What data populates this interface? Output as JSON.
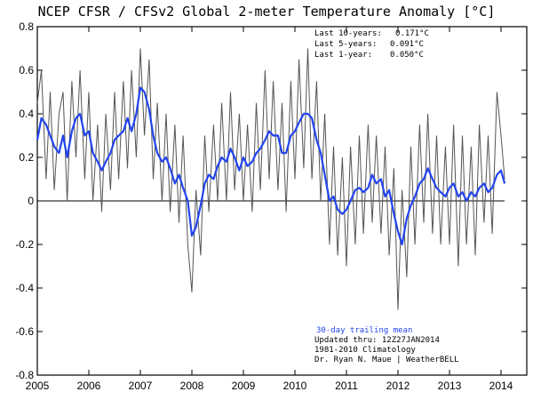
{
  "chart_data": {
    "type": "line",
    "title": "NCEP CFSR / CFSv2 Global 2-meter Temperature Anomaly [°C]",
    "xlabel": "",
    "ylabel": "",
    "xlim": [
      2005.0,
      2014.5
    ],
    "ylim": [
      -0.8,
      0.8
    ],
    "x_ticks": [
      "2005",
      "2006",
      "2007",
      "2008",
      "2009",
      "2010",
      "2011",
      "2012",
      "2013",
      "2014"
    ],
    "y_ticks": [
      "0.8",
      "0.6",
      "0.4",
      "0.2",
      "0",
      "-0.2",
      "-0.4",
      "-0.6",
      "-0.8"
    ],
    "zero_line": 0,
    "stats": [
      {
        "label": "Last 10-years:",
        "value": "0.171°C"
      },
      {
        "label": "Last 5-years:",
        "value": "0.091°C"
      },
      {
        "label": "Last 1-year:",
        "value": "0.050°C"
      }
    ],
    "legend_label": "30-day trailing mean",
    "notes": [
      "Updated thru: 12Z27JAN2014",
      "1981-2010 Climatology",
      "Dr. Ryan N. Maue | WeatherBELL"
    ],
    "colors": {
      "daily": "#555555",
      "mean": "#2244ee",
      "legend_text": "#2244ee"
    },
    "series": [
      {
        "name": "30-day trailing mean",
        "x": [
          2005.0,
          2005.08,
          2005.17,
          2005.25,
          2005.33,
          2005.42,
          2005.5,
          2005.58,
          2005.67,
          2005.75,
          2005.83,
          2005.92,
          2006.0,
          2006.08,
          2006.17,
          2006.25,
          2006.33,
          2006.42,
          2006.5,
          2006.58,
          2006.67,
          2006.75,
          2006.83,
          2006.92,
          2007.0,
          2007.08,
          2007.17,
          2007.25,
          2007.33,
          2007.42,
          2007.5,
          2007.58,
          2007.67,
          2007.75,
          2007.83,
          2007.92,
          2008.0,
          2008.08,
          2008.17,
          2008.25,
          2008.33,
          2008.42,
          2008.5,
          2008.58,
          2008.67,
          2008.75,
          2008.83,
          2008.92,
          2009.0,
          2009.08,
          2009.17,
          2009.25,
          2009.33,
          2009.42,
          2009.5,
          2009.58,
          2009.67,
          2009.75,
          2009.83,
          2009.92,
          2010.0,
          2010.08,
          2010.17,
          2010.25,
          2010.33,
          2010.42,
          2010.5,
          2010.58,
          2010.67,
          2010.75,
          2010.83,
          2010.92,
          2011.0,
          2011.08,
          2011.17,
          2011.25,
          2011.33,
          2011.42,
          2011.5,
          2011.58,
          2011.67,
          2011.75,
          2011.83,
          2011.92,
          2012.0,
          2012.08,
          2012.17,
          2012.25,
          2012.33,
          2012.42,
          2012.5,
          2012.58,
          2012.67,
          2012.75,
          2012.83,
          2012.92,
          2013.0,
          2013.08,
          2013.17,
          2013.25,
          2013.33,
          2013.42,
          2013.5,
          2013.58,
          2013.67,
          2013.75,
          2013.83,
          2013.92,
          2014.0,
          2014.07
        ],
        "values": [
          0.28,
          0.38,
          0.35,
          0.3,
          0.25,
          0.22,
          0.3,
          0.2,
          0.32,
          0.38,
          0.4,
          0.3,
          0.32,
          0.22,
          0.18,
          0.14,
          0.18,
          0.22,
          0.28,
          0.3,
          0.32,
          0.38,
          0.32,
          0.4,
          0.52,
          0.5,
          0.42,
          0.3,
          0.22,
          0.18,
          0.2,
          0.15,
          0.08,
          0.12,
          0.06,
          0.0,
          -0.16,
          -0.12,
          -0.02,
          0.08,
          0.12,
          0.1,
          0.16,
          0.2,
          0.18,
          0.24,
          0.2,
          0.14,
          0.2,
          0.16,
          0.18,
          0.22,
          0.24,
          0.28,
          0.32,
          0.3,
          0.3,
          0.22,
          0.22,
          0.3,
          0.32,
          0.36,
          0.4,
          0.4,
          0.38,
          0.28,
          0.22,
          0.12,
          0.0,
          0.02,
          -0.04,
          -0.06,
          -0.04,
          0.0,
          0.05,
          0.06,
          0.04,
          0.06,
          0.12,
          0.08,
          0.1,
          0.02,
          0.05,
          -0.06,
          -0.14,
          -0.2,
          -0.08,
          -0.02,
          0.02,
          0.08,
          0.1,
          0.15,
          0.1,
          0.06,
          0.04,
          0.02,
          0.06,
          0.08,
          0.02,
          0.04,
          0.0,
          0.04,
          0.02,
          0.06,
          0.08,
          0.04,
          0.06,
          0.12,
          0.14,
          0.08
        ]
      },
      {
        "name": "daily",
        "x": [
          2005.0,
          2005.08,
          2005.17,
          2005.25,
          2005.33,
          2005.42,
          2005.5,
          2005.58,
          2005.67,
          2005.75,
          2005.83,
          2005.92,
          2006.0,
          2006.08,
          2006.17,
          2006.25,
          2006.33,
          2006.42,
          2006.5,
          2006.58,
          2006.67,
          2006.75,
          2006.83,
          2006.92,
          2007.0,
          2007.08,
          2007.17,
          2007.25,
          2007.33,
          2007.42,
          2007.5,
          2007.58,
          2007.67,
          2007.75,
          2007.83,
          2007.92,
          2008.0,
          2008.08,
          2008.17,
          2008.25,
          2008.33,
          2008.42,
          2008.5,
          2008.58,
          2008.67,
          2008.75,
          2008.83,
          2008.92,
          2009.0,
          2009.08,
          2009.17,
          2009.25,
          2009.33,
          2009.42,
          2009.5,
          2009.58,
          2009.67,
          2009.75,
          2009.83,
          2009.92,
          2010.0,
          2010.08,
          2010.17,
          2010.25,
          2010.33,
          2010.42,
          2010.5,
          2010.58,
          2010.67,
          2010.75,
          2010.83,
          2010.92,
          2011.0,
          2011.08,
          2011.17,
          2011.25,
          2011.33,
          2011.42,
          2011.5,
          2011.58,
          2011.67,
          2011.75,
          2011.83,
          2011.92,
          2012.0,
          2012.08,
          2012.17,
          2012.25,
          2012.33,
          2012.42,
          2012.5,
          2012.58,
          2012.67,
          2012.75,
          2012.83,
          2012.92,
          2013.0,
          2013.08,
          2013.17,
          2013.25,
          2013.33,
          2013.42,
          2013.5,
          2013.58,
          2013.67,
          2013.75,
          2013.83,
          2013.92,
          2014.0,
          2014.07
        ],
        "values": [
          0.45,
          0.6,
          0.1,
          0.5,
          0.05,
          0.4,
          0.5,
          0.0,
          0.55,
          0.2,
          0.6,
          0.1,
          0.5,
          0.0,
          0.35,
          -0.05,
          0.4,
          0.05,
          0.5,
          0.1,
          0.55,
          0.15,
          0.6,
          0.2,
          0.7,
          0.3,
          0.65,
          0.1,
          0.45,
          0.0,
          0.4,
          -0.05,
          0.35,
          -0.1,
          0.3,
          -0.2,
          -0.42,
          0.05,
          -0.25,
          0.3,
          -0.05,
          0.35,
          0.0,
          0.45,
          0.0,
          0.5,
          0.05,
          0.4,
          0.0,
          0.35,
          -0.05,
          0.45,
          0.05,
          0.6,
          0.1,
          0.55,
          0.05,
          0.45,
          -0.05,
          0.55,
          0.1,
          0.65,
          0.15,
          0.7,
          0.1,
          0.55,
          0.0,
          0.4,
          -0.2,
          0.25,
          -0.25,
          0.2,
          -0.3,
          0.25,
          -0.2,
          0.3,
          -0.15,
          0.35,
          -0.1,
          0.3,
          -0.15,
          0.25,
          -0.25,
          0.15,
          -0.5,
          0.05,
          -0.35,
          0.25,
          -0.2,
          0.35,
          -0.1,
          0.4,
          -0.15,
          0.3,
          -0.2,
          0.25,
          -0.2,
          0.35,
          -0.3,
          0.3,
          -0.2,
          0.25,
          -0.25,
          0.35,
          -0.1,
          0.3,
          -0.15,
          0.5,
          0.3,
          0.1
        ]
      }
    ]
  }
}
